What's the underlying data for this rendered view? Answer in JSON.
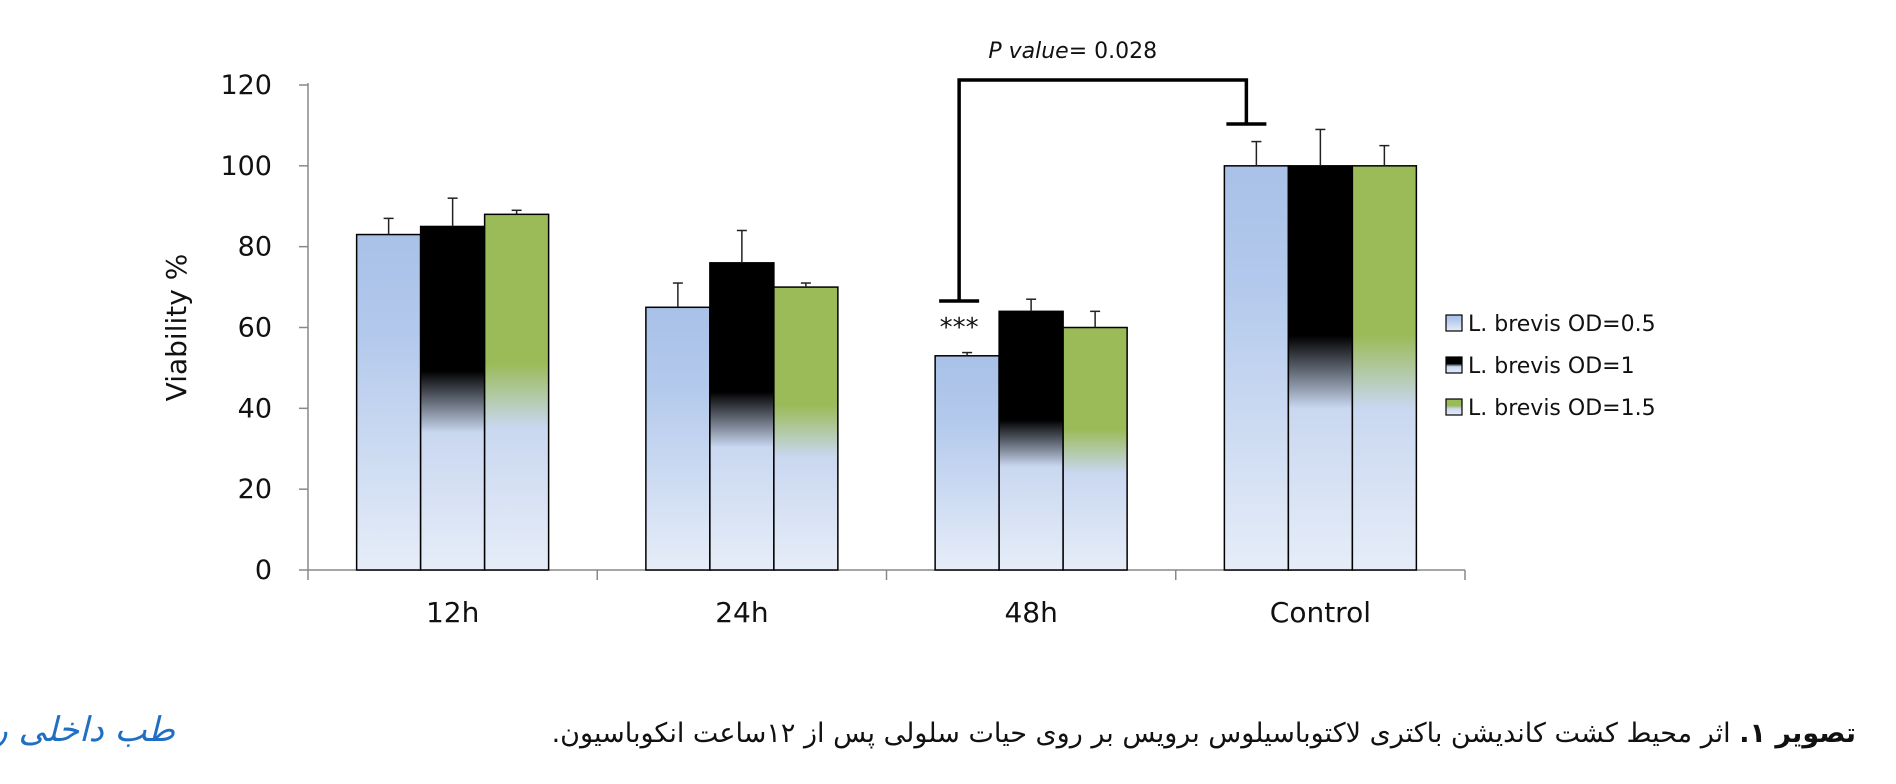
{
  "chart_data": {
    "type": "bar",
    "ylabel": "Viability %",
    "xlabel": "",
    "ylim": [
      0,
      120
    ],
    "yticks": [
      0,
      20,
      40,
      60,
      80,
      100,
      120
    ],
    "categories": [
      "12h",
      "24h",
      "48h",
      "Control"
    ],
    "series": [
      {
        "name": "L. brevis OD=0.5",
        "values": [
          83,
          65,
          53,
          100
        ],
        "errors": [
          4,
          6,
          0.8,
          6
        ],
        "color_top": "#a9c1e8",
        "color_bottom": "#e6edf8"
      },
      {
        "name": "L. brevis OD=1",
        "values": [
          85,
          76,
          64,
          100
        ],
        "errors": [
          7,
          8,
          3,
          9
        ],
        "color_top": "#000000",
        "color_bottom": "#e6edf8"
      },
      {
        "name": "L. brevis OD=1.5",
        "values": [
          88,
          70,
          60,
          100
        ],
        "errors": [
          1,
          1,
          4,
          5
        ],
        "color_top": "#9bbb59",
        "color_bottom": "#e6edf8"
      }
    ],
    "annotations": {
      "significance_marker": "***",
      "significance_category": "48h",
      "pvalue_label_italic": "P value",
      "pvalue_label_rest": "= 0.028",
      "bracket_from_category": "48h",
      "bracket_to_category": "Control"
    },
    "legend_position": "right",
    "grid": false
  },
  "caption": {
    "bold": "تصویر ۱.",
    "text": " اثر محیط کشت کاندیشن باکتری لاکتوباسیلوس برویس بر روی حیات سلولی پس از ۱۲ساعت انکوباسیون."
  },
  "logo": {
    "text": "طب داخلی روزانه"
  },
  "colors": {
    "logo": "#1f6fc4",
    "axis": "#888888"
  }
}
